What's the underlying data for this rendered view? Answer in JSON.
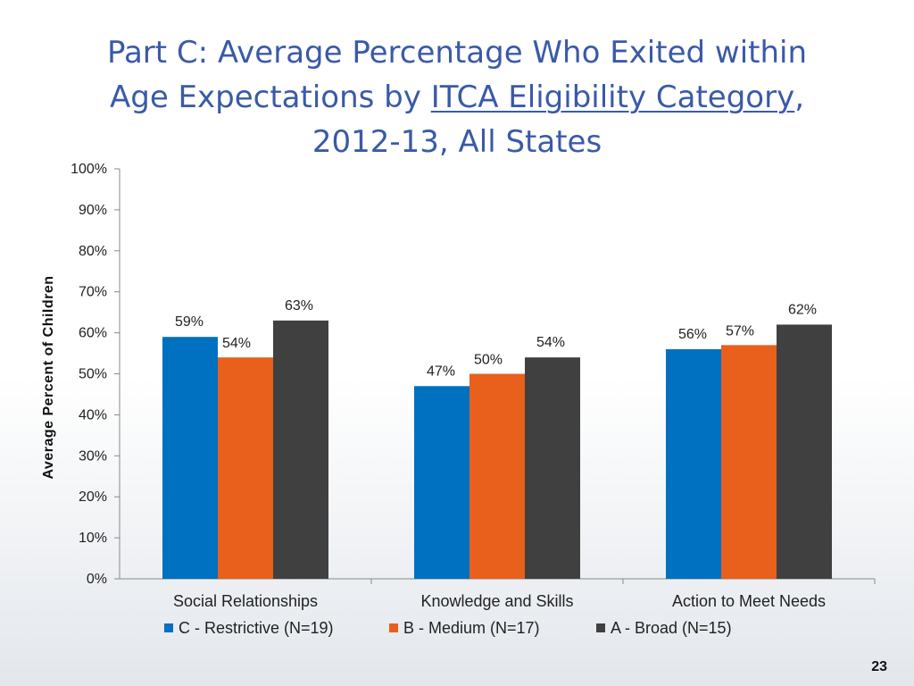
{
  "slide": {
    "title_line1": "Part C: Average Percentage Who Exited within",
    "title_line2_prefix": "Age Expectations by ",
    "title_line2_link": "ITCA Eligibility Category",
    "title_line2_suffix": ",",
    "title_line3": "2012-13, All States",
    "page_number": "23"
  },
  "chart_data": {
    "type": "bar",
    "title": "Part C: Average Percentage Who Exited within Age Expectations by ITCA Eligibility Category, 2012-13, All States",
    "xlabel": "",
    "ylabel": "Average Percent of Children",
    "ylim": [
      0,
      100
    ],
    "yticks": [
      "0%",
      "10%",
      "20%",
      "30%",
      "40%",
      "50%",
      "60%",
      "70%",
      "80%",
      "90%",
      "100%"
    ],
    "categories": [
      "Social Relationships",
      "Knowledge and Skills",
      "Action to Meet Needs"
    ],
    "series": [
      {
        "name": "C - Restrictive (N=19)",
        "color": "#0070c0",
        "values": [
          59,
          47,
          56
        ],
        "labels": [
          "59%",
          "47%",
          "56%"
        ]
      },
      {
        "name": "B - Medium (N=17)",
        "color": "#e8601c",
        "values": [
          54,
          50,
          57
        ],
        "labels": [
          "54%",
          "50%",
          "57%"
        ]
      },
      {
        "name": "A - Broad (N=15)",
        "color": "#404040",
        "values": [
          63,
          54,
          62
        ],
        "labels": [
          "63%",
          "54%",
          "62%"
        ]
      }
    ],
    "legend_position": "bottom",
    "grid": false
  }
}
